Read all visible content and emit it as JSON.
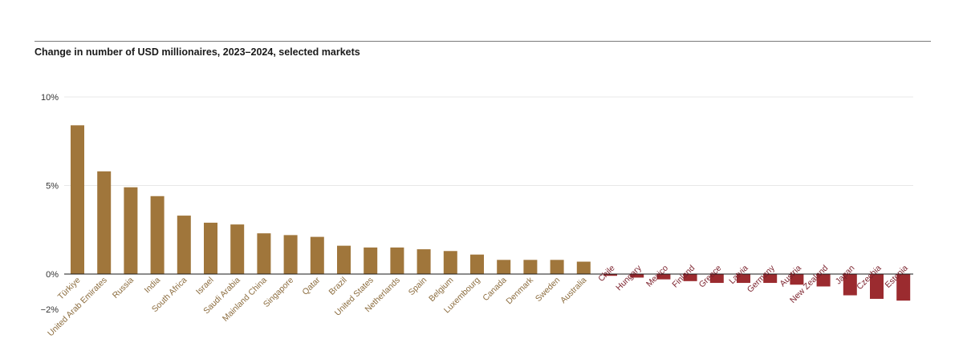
{
  "chart_data": {
    "type": "bar",
    "title": "Change in number of USD millionaires, 2023–2024, selected markets",
    "xlabel": "",
    "ylabel": "",
    "ylim": [
      -2,
      10
    ],
    "yticks": [
      {
        "value": 10,
        "label": "10%"
      },
      {
        "value": 5,
        "label": "5%"
      },
      {
        "value": 0,
        "label": "0%"
      },
      {
        "value": -2,
        "label": "−2%"
      }
    ],
    "grid": true,
    "legend": "none",
    "categories": [
      "Türkiye",
      "United Arab Emirates",
      "Russia",
      "India",
      "South Africa",
      "Israel",
      "Saudi Arabia",
      "Mainland China",
      "Singapore",
      "Qatar",
      "Brazil",
      "United States",
      "Netherlands",
      "Spain",
      "Belgium",
      "Luxembourg",
      "Canada",
      "Denmark",
      "Sweden",
      "Australia",
      "Chile",
      "Hungary",
      "Mexico",
      "Finland",
      "Greece",
      "Latvia",
      "Germany",
      "Austria",
      "New Zealand",
      "Japan",
      "Czechia",
      "Estonia"
    ],
    "values": [
      8.4,
      5.8,
      4.9,
      4.4,
      3.3,
      2.9,
      2.8,
      2.3,
      2.2,
      2.1,
      1.6,
      1.5,
      1.5,
      1.4,
      1.3,
      1.1,
      0.8,
      0.8,
      0.8,
      0.7,
      -0.1,
      -0.2,
      -0.3,
      -0.4,
      -0.5,
      -0.5,
      -0.5,
      -0.6,
      -0.7,
      -1.2,
      -1.4,
      -1.5
    ],
    "colors": {
      "positive_bar": "#a0763b",
      "negative_bar": "#9b2b2f",
      "positive_label": "#8c6d3f",
      "negative_label": "#7a1f2a",
      "grid": "#e8e8e8",
      "zero_line": "#1a1a1a"
    }
  }
}
